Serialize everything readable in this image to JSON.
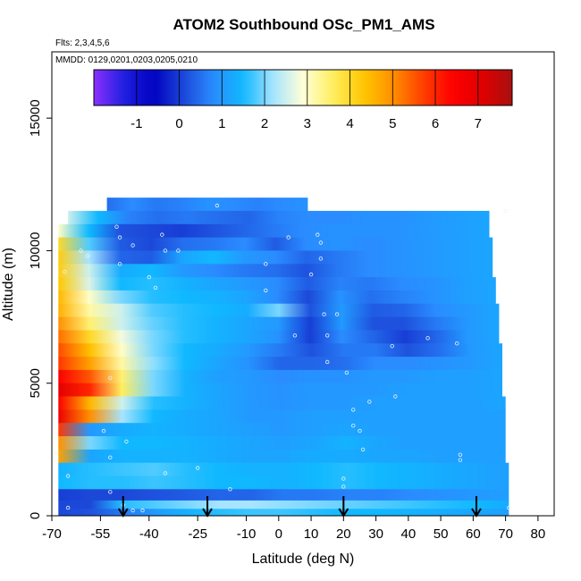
{
  "chart_data": {
    "type": "heatmap",
    "title": "ATOM2 Southbound OSc_PM1_AMS",
    "flights_note": "Flts: 2,3,4,5,6",
    "dates_note": "MMDD: 0129,0201,0203,0205,0210",
    "xlabel": "Latitude (deg N)",
    "ylabel": "Altitude (m)",
    "xlim": [
      -70,
      85
    ],
    "ylim": [
      0,
      17500
    ],
    "x_ticks": [
      -70,
      -55,
      -40,
      -25,
      -10,
      0,
      10,
      20,
      30,
      40,
      50,
      60,
      70,
      80
    ],
    "y_ticks": [
      0,
      5000,
      10000,
      15000
    ],
    "colorbar": {
      "range": [
        -2,
        7.8
      ],
      "ticks": [
        -1,
        0,
        1,
        2,
        3,
        4,
        5,
        6,
        7
      ],
      "colors": [
        "#8b30ff",
        "#2020e0",
        "#0000c0",
        "#1c48d8",
        "#2a8cff",
        "#10b8ff",
        "#a6e4ff",
        "#ffffd8",
        "#ffee60",
        "#ffc800",
        "#ff9000",
        "#ff4000",
        "#ff0000",
        "#e00000",
        "#a81010"
      ]
    },
    "sounding_markers_lat": [
      -48,
      -22,
      20,
      61
    ],
    "altitude_bands": [
      {
        "alt": 11750,
        "xmin": -53,
        "xmax": 9,
        "values": [
          0.5,
          0.8,
          0.6,
          0.7,
          0.9,
          0.8,
          0.7,
          0.8,
          0.9
        ]
      },
      {
        "alt": 11250,
        "xmin": -65,
        "xmax": 65,
        "values": [
          2.5,
          1.5,
          0.7,
          0.5,
          0.6,
          0.5,
          0.4,
          0.7,
          0.8,
          0.8,
          0.9,
          0.9,
          1.0,
          1.1,
          1.2
        ]
      },
      {
        "alt": 10750,
        "xmin": -68,
        "xmax": 65,
        "values": [
          3.0,
          1.5,
          0.2,
          0.1,
          0.0,
          0.2,
          0.4,
          0.6,
          0.8,
          0.9,
          0.9,
          0.9,
          1.0,
          1.1,
          1.2
        ]
      },
      {
        "alt": 10250,
        "xmin": -68,
        "xmax": 66,
        "values": [
          4.0,
          1.8,
          0.3,
          0.1,
          0.5,
          0.6,
          0.8,
          0.3,
          0.8,
          0.9,
          0.8,
          0.9,
          1.0,
          1.1,
          1.2
        ]
      },
      {
        "alt": 9750,
        "xmin": -68,
        "xmax": 66,
        "values": [
          4.2,
          2.2,
          0.4,
          0.3,
          1.2,
          1.5,
          1.0,
          0.8,
          0.4,
          0.6,
          0.8,
          0.9,
          1.0,
          1.1,
          1.2
        ]
      },
      {
        "alt": 9250,
        "xmin": -68,
        "xmax": 66,
        "values": [
          4.2,
          2.5,
          1.3,
          1.5,
          1.0,
          0.8,
          0.6,
          0.5,
          0.2,
          0.6,
          0.8,
          0.9,
          1.0,
          1.1,
          1.2
        ]
      },
      {
        "alt": 8750,
        "xmin": -68,
        "xmax": 67,
        "values": [
          4.3,
          2.6,
          1.5,
          1.6,
          1.4,
          1.2,
          1.0,
          0.8,
          0.3,
          0.7,
          0.6,
          0.8,
          0.9,
          1.1,
          1.2
        ]
      },
      {
        "alt": 8250,
        "xmin": -68,
        "xmax": 67,
        "values": [
          4.5,
          3.0,
          2.0,
          1.6,
          1.5,
          1.4,
          1.2,
          0.8,
          0.1,
          0.9,
          0.5,
          0.7,
          0.9,
          1.1,
          1.2
        ]
      },
      {
        "alt": 7750,
        "xmin": -68,
        "xmax": 68,
        "values": [
          4.6,
          3.2,
          2.5,
          1.8,
          1.6,
          1.5,
          1.3,
          2.0,
          0.2,
          1.0,
          0.3,
          0.4,
          0.8,
          1.0,
          1.2
        ]
      },
      {
        "alt": 7250,
        "xmin": -68,
        "xmax": 68,
        "values": [
          5.0,
          3.5,
          2.5,
          1.9,
          1.6,
          1.4,
          1.2,
          1.0,
          0.0,
          1.0,
          0.2,
          0.2,
          0.6,
          1.0,
          1.2
        ]
      },
      {
        "alt": 6750,
        "xmin": -68,
        "xmax": 68,
        "values": [
          5.3,
          4.0,
          2.8,
          2.0,
          1.6,
          1.4,
          1.2,
          0.9,
          0.0,
          0.8,
          0.4,
          0.0,
          0.4,
          1.0,
          1.2
        ]
      },
      {
        "alt": 6250,
        "xmin": -68,
        "xmax": 69,
        "values": [
          5.6,
          4.4,
          3.0,
          2.0,
          1.5,
          1.3,
          1.0,
          0.6,
          0.2,
          0.6,
          0.6,
          0.2,
          0.5,
          1.0,
          1.2
        ]
      },
      {
        "alt": 5750,
        "xmin": -68,
        "xmax": 69,
        "values": [
          5.8,
          4.8,
          3.2,
          2.1,
          1.5,
          1.2,
          0.9,
          0.4,
          0.4,
          0.5,
          0.8,
          0.8,
          0.9,
          1.0,
          1.2
        ]
      },
      {
        "alt": 5250,
        "xmin": -68,
        "xmax": 69,
        "values": [
          6.5,
          5.5,
          3.5,
          2.0,
          1.4,
          1.1,
          1.0,
          0.8,
          0.9,
          0.9,
          1.0,
          1.0,
          1.1,
          1.1,
          1.2
        ]
      },
      {
        "alt": 4750,
        "xmin": -68,
        "xmax": 69,
        "values": [
          7.0,
          6.0,
          3.6,
          2.0,
          1.4,
          1.2,
          1.0,
          0.9,
          1.0,
          1.0,
          1.0,
          1.1,
          1.1,
          1.1,
          1.2
        ]
      },
      {
        "alt": 4250,
        "xmin": -68,
        "xmax": 70,
        "values": [
          6.5,
          4.5,
          2.5,
          1.6,
          1.4,
          1.2,
          1.0,
          0.9,
          1.0,
          1.0,
          1.1,
          1.1,
          1.1,
          1.1,
          1.2
        ]
      },
      {
        "alt": 3750,
        "xmin": -68,
        "xmax": 70,
        "values": [
          6.8,
          5.0,
          2.2,
          1.5,
          1.3,
          1.2,
          1.0,
          1.0,
          1.1,
          1.1,
          1.1,
          1.1,
          1.1,
          1.1,
          1.1
        ]
      },
      {
        "alt": 3250,
        "xmin": -68,
        "xmax": 70,
        "values": [
          5.8,
          1.0,
          1.3,
          1.4,
          1.3,
          1.2,
          1.1,
          1.0,
          1.1,
          1.2,
          1.1,
          1.1,
          1.1,
          1.1,
          1.1
        ]
      },
      {
        "alt": 2750,
        "xmin": -68,
        "xmax": 70,
        "values": [
          5.0,
          2.0,
          1.5,
          1.5,
          1.4,
          1.3,
          1.2,
          1.1,
          1.2,
          1.4,
          1.2,
          1.1,
          1.1,
          1.1,
          1.1
        ]
      },
      {
        "alt": 2250,
        "xmin": -68,
        "xmax": 70,
        "values": [
          4.8,
          1.2,
          1.4,
          1.4,
          1.4,
          1.3,
          1.2,
          1.2,
          1.3,
          1.3,
          1.2,
          1.2,
          1.1,
          1.1,
          1.1
        ]
      },
      {
        "alt": 1750,
        "xmin": -68,
        "xmax": 71,
        "values": [
          1.4,
          1.6,
          1.7,
          1.8,
          1.6,
          1.5,
          1.4,
          1.4,
          1.5,
          1.6,
          1.5,
          1.4,
          1.3,
          1.2,
          1.1
        ]
      },
      {
        "alt": 1250,
        "xmin": -68,
        "xmax": 71,
        "values": [
          1.5,
          1.6,
          1.6,
          1.7,
          1.6,
          1.5,
          1.5,
          1.4,
          1.5,
          1.6,
          1.5,
          1.4,
          1.3,
          1.2,
          1.1
        ]
      },
      {
        "alt": 750,
        "xmin": -68,
        "xmax": 71,
        "values": [
          0.0,
          0.1,
          0.1,
          0.2,
          0.3,
          0.4,
          0.4,
          0.6,
          0.6,
          0.7,
          0.7,
          0.8,
          0.9,
          1.0,
          1.1
        ]
      },
      {
        "alt": 400,
        "xmin": -68,
        "xmax": 71,
        "values": [
          0.1,
          0.1,
          1.6,
          1.8,
          2.0,
          2.2,
          2.2,
          2.1,
          2.0,
          1.9,
          1.8,
          1.7,
          1.6,
          1.5,
          1.3
        ]
      },
      {
        "alt": 120,
        "xmin": -68,
        "xmax": 71,
        "values": [
          0.1,
          0.2,
          0.6,
          1.0,
          1.4,
          1.6,
          1.7,
          1.7,
          1.6,
          1.5,
          1.5,
          1.4,
          1.3,
          1.2,
          1.1
        ]
      }
    ],
    "sample_points": [
      [
        -65,
        300
      ],
      [
        -65,
        1500
      ],
      [
        -61,
        10000
      ],
      [
        -50,
        10900
      ],
      [
        -49,
        10500
      ],
      [
        -49,
        9500
      ],
      [
        -45,
        10200
      ],
      [
        -40,
        9000
      ],
      [
        -38,
        8600
      ],
      [
        -36,
        10600
      ],
      [
        -35,
        10000
      ],
      [
        -31,
        10000
      ],
      [
        -19,
        11700
      ],
      [
        -4,
        9500
      ],
      [
        -4,
        8500
      ],
      [
        3,
        10500
      ],
      [
        5,
        6800
      ],
      [
        10,
        9100
      ],
      [
        13,
        9700
      ],
      [
        12,
        10600
      ],
      [
        13,
        10300
      ],
      [
        14,
        7600
      ],
      [
        15,
        6800
      ],
      [
        15,
        5800
      ],
      [
        18,
        7600
      ],
      [
        21,
        5400
      ],
      [
        23,
        4000
      ],
      [
        23,
        3400
      ],
      [
        25,
        3200
      ],
      [
        26,
        2500
      ],
      [
        28,
        4300
      ],
      [
        35,
        6400
      ],
      [
        36,
        4500
      ],
      [
        46,
        6700
      ],
      [
        55,
        6500
      ],
      [
        56,
        2300
      ],
      [
        56,
        2100
      ],
      [
        71,
        300
      ],
      [
        70,
        11500
      ],
      [
        -52,
        5200
      ],
      [
        -54,
        3200
      ],
      [
        -52,
        2200
      ],
      [
        -48,
        400
      ],
      [
        -45,
        200
      ],
      [
        -52,
        900
      ],
      [
        -25,
        1800
      ],
      [
        -15,
        1000
      ],
      [
        20,
        1400
      ],
      [
        20,
        1100
      ],
      [
        -66,
        9200
      ],
      [
        -59,
        9800
      ],
      [
        -47,
        2800
      ],
      [
        -42,
        200
      ],
      [
        -35,
        1600
      ]
    ]
  }
}
